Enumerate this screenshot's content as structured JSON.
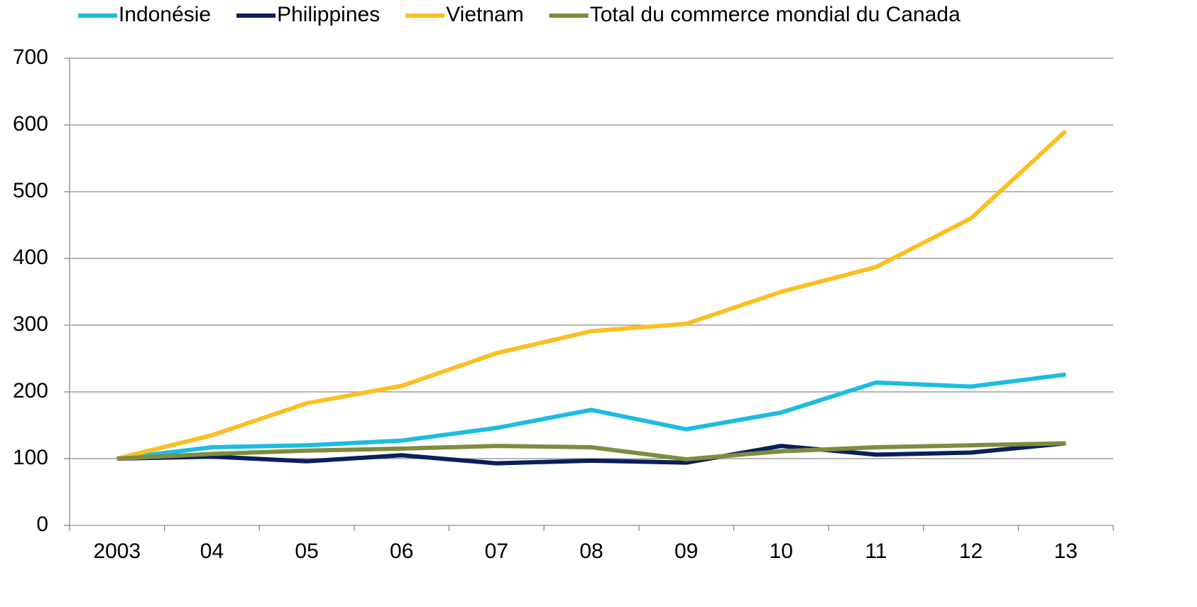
{
  "chart_data": {
    "type": "line",
    "categories": [
      "2003",
      "04",
      "05",
      "06",
      "07",
      "08",
      "09",
      "10",
      "11",
      "12",
      "13"
    ],
    "series": [
      {
        "name": "Indonésie",
        "color": "#1bbde0",
        "values": [
          100,
          117,
          120,
          127,
          146,
          173,
          144,
          169,
          214,
          208,
          226
        ]
      },
      {
        "name": "Philippines",
        "color": "#0a1f5c",
        "values": [
          100,
          103,
          96,
          105,
          93,
          97,
          94,
          119,
          106,
          109,
          123
        ]
      },
      {
        "name": "Vietnam",
        "color": "#fbbf22",
        "values": [
          100,
          135,
          183,
          209,
          258,
          291,
          302,
          350,
          387,
          460,
          591
        ]
      },
      {
        "name": "Total du commerce mondial du Canada",
        "color": "#7f8c3f",
        "values": [
          100,
          107,
          112,
          115,
          119,
          117,
          99,
          111,
          117,
          120,
          123
        ]
      }
    ],
    "ylim": [
      0,
      700
    ],
    "yticks": [
      0,
      100,
      200,
      300,
      400,
      500,
      600,
      700
    ],
    "grid": true,
    "legend": "top"
  }
}
